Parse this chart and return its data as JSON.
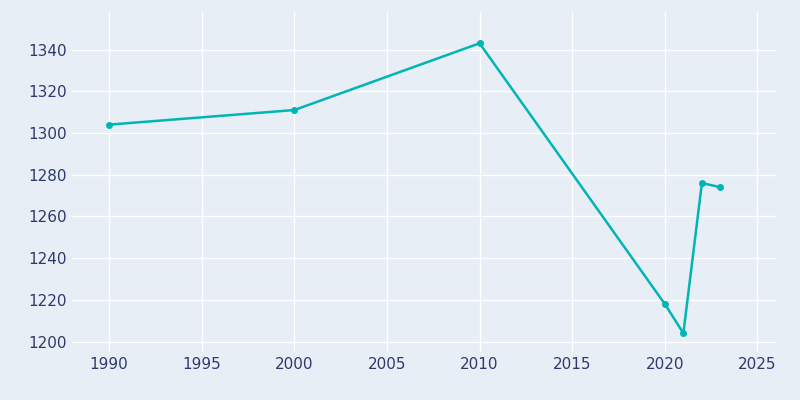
{
  "years": [
    1990,
    2000,
    2010,
    2020,
    2021,
    2022,
    2023
  ],
  "population": [
    1304,
    1311,
    1343,
    1218,
    1204,
    1276,
    1274
  ],
  "line_color": "#00b5b5",
  "marker_style": "o",
  "marker_size": 4,
  "line_width": 1.8,
  "xlim": [
    1988,
    2026
  ],
  "ylim": [
    1195,
    1358
  ],
  "xticks": [
    1990,
    1995,
    2000,
    2005,
    2010,
    2015,
    2020,
    2025
  ],
  "yticks": [
    1200,
    1220,
    1240,
    1260,
    1280,
    1300,
    1320,
    1340
  ],
  "plot_bg_color": "#e8eef5",
  "fig_bg_color": "#e8eef5",
  "grid_color": "#ffffff",
  "tick_label_color": "#2e3a6e",
  "tick_label_fontsize": 11
}
